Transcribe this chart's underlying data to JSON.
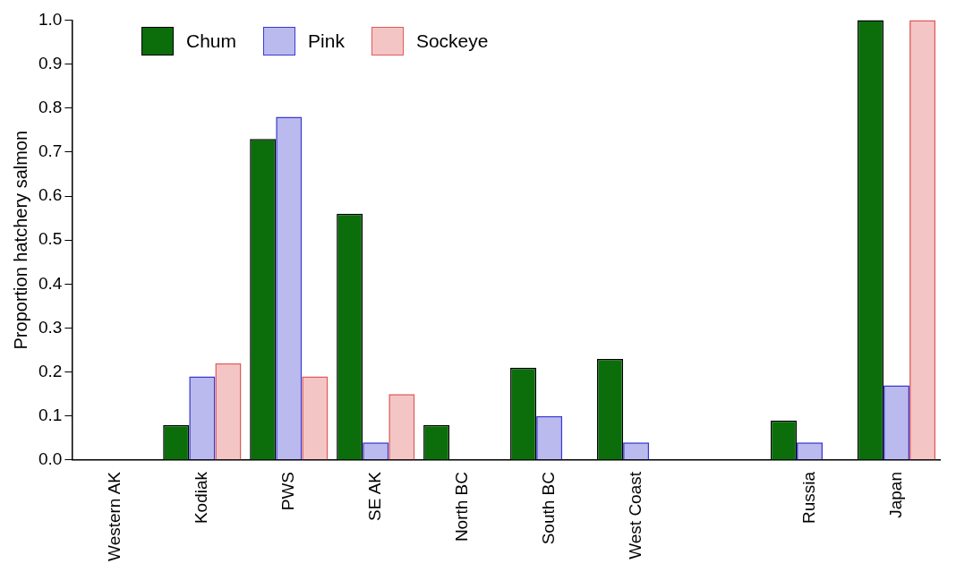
{
  "chart_data": {
    "type": "bar",
    "ylabel": "Proportion hatchery salmon",
    "categories": [
      "Western AK",
      "Kodiak",
      "PWS",
      "SE AK",
      "North BC",
      "South BC",
      "West Coast",
      null,
      "Russia",
      "Japan"
    ],
    "series": [
      {
        "name": "Chum",
        "color": "#0b6e0b",
        "values": [
          0,
          0.08,
          0.73,
          0.56,
          0.08,
          0.21,
          0.23,
          null,
          0.09,
          1.0
        ]
      },
      {
        "name": "Pink",
        "color": "#3a3ad0",
        "values": [
          0,
          0.19,
          0.78,
          0.04,
          0,
          0.1,
          0.04,
          null,
          0.04,
          0.17
        ]
      },
      {
        "name": "Sockeye",
        "color": "#e05a5a",
        "values": [
          0,
          0.22,
          0.19,
          0.15,
          0,
          0,
          0,
          null,
          0,
          1.0
        ]
      }
    ],
    "ylim": [
      0,
      1.0
    ],
    "yticks": [
      {
        "value": 0,
        "label": "0.0"
      },
      0.1,
      0.2,
      0.3,
      0.4,
      0.5,
      0.6,
      0.7,
      0.8,
      0.9,
      {
        "value": 1,
        "label": "1.0"
      }
    ],
    "grid": false,
    "legend": "top left"
  }
}
